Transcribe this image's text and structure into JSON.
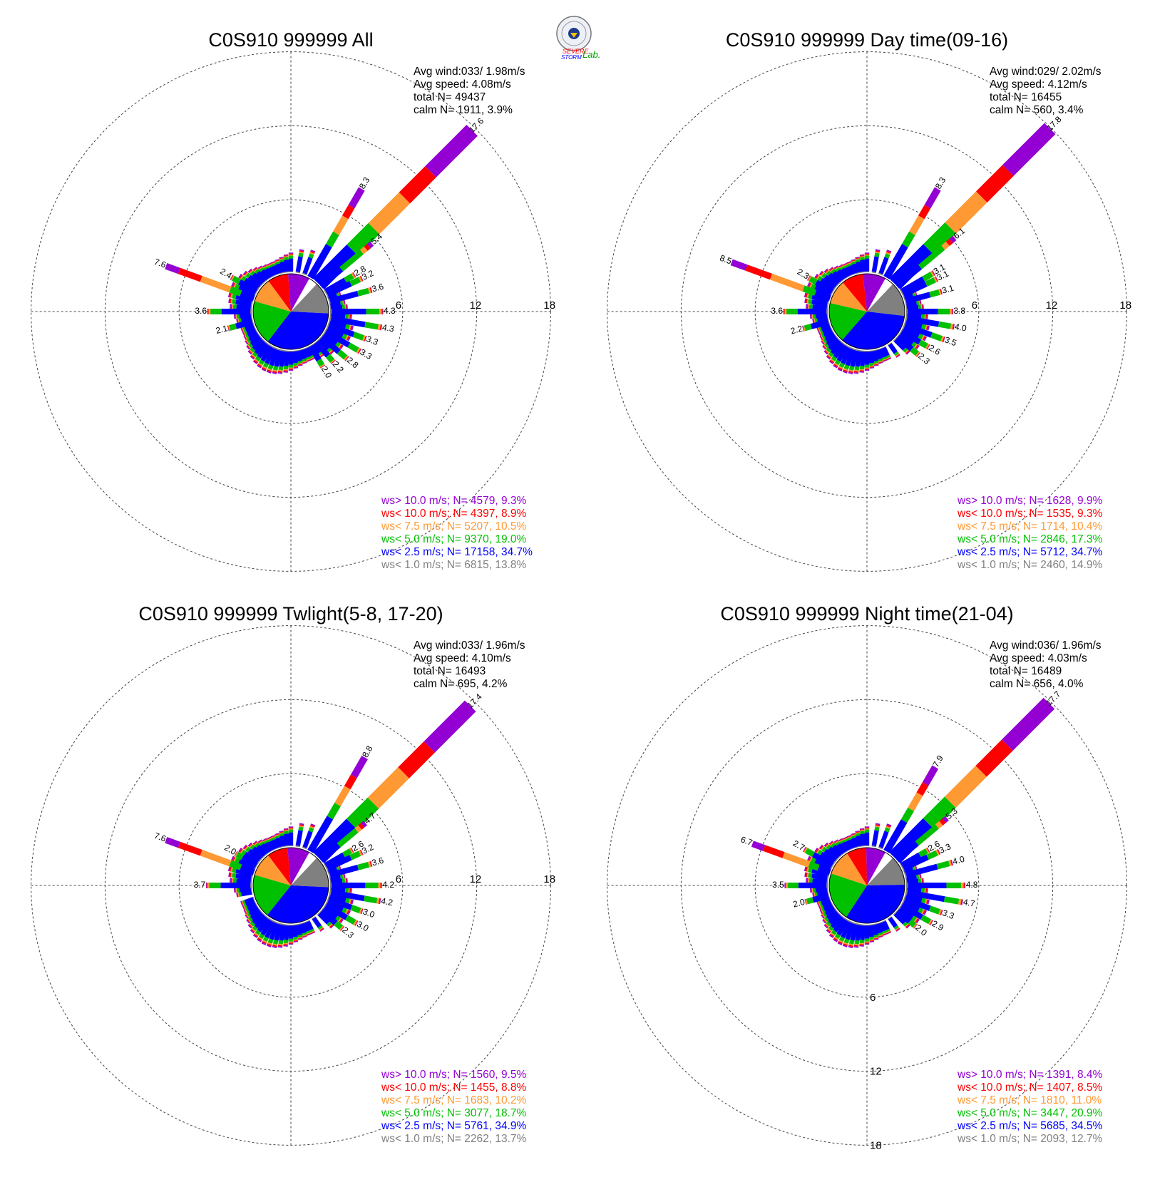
{
  "colors": {
    "gt10": "#9400d3",
    "lt10": "#ff0000",
    "lt7_5": "#ff9933",
    "lt5": "#00c000",
    "lt2_5": "#0000ff",
    "lt1": "#808080"
  },
  "logo": {
    "text_top": "SEVERE",
    "text_bottom": "STORM",
    "text_lab": "Lab."
  },
  "chart_data": [
    {
      "type": "windrose",
      "title": "C0S910 999999 All",
      "stats": [
        "Avg wind:033/ 1.98m/s",
        "Avg speed: 4.08m/s",
        "total N=      49437",
        "calm N=   1911,   3.9%"
      ],
      "rings": [
        "6",
        "12",
        "18"
      ],
      "ring_label_side": "east",
      "legend": [
        {
          "key": "gt10",
          "text": "ws> 10.0 m/s; N=  4579,  9.3%"
        },
        {
          "key": "lt10",
          "text": "ws< 10.0 m/s; N=  4397,  8.9%"
        },
        {
          "key": "lt7_5",
          "text": "ws<  7.5 m/s; N=  5207, 10.5%"
        },
        {
          "key": "lt5",
          "text": "ws<  5.0 m/s; N=  9370, 19.0%"
        },
        {
          "key": "lt2_5",
          "text": "ws<  2.5 m/s; N= 17158, 34.7%"
        },
        {
          "key": "lt1",
          "text": "ws<  1.0 m/s; N=  6815, 13.8%"
        }
      ],
      "pie": [
        13.8,
        34.7,
        19.0,
        10.5,
        8.9,
        9.3
      ],
      "spokes": [
        {
          "dir": 45,
          "total": 17.6,
          "label": "17.6"
        },
        {
          "dir": 30,
          "total": 8.3,
          "label": "8.3"
        },
        {
          "dir": 50,
          "total": 5.4,
          "label": "5.4"
        },
        {
          "dir": 60,
          "total": 2.8,
          "label": "2.8"
        },
        {
          "dir": 65,
          "total": 3.2,
          "label": "3.2"
        },
        {
          "dir": 75,
          "total": 3.6,
          "label": "3.6"
        },
        {
          "dir": 90,
          "total": 4.3,
          "label": "4.3"
        },
        {
          "dir": 100,
          "total": 4.3,
          "label": "4.3"
        },
        {
          "dir": 110,
          "total": 3.3,
          "label": "3.3"
        },
        {
          "dir": 120,
          "total": 3.3,
          "label": "3.3"
        },
        {
          "dir": 130,
          "total": 2.8,
          "label": "2.8"
        },
        {
          "dir": 140,
          "total": 2.2,
          "label": "2.2"
        },
        {
          "dir": 150,
          "total": 2.0,
          "label": "2.0"
        },
        {
          "dir": 290,
          "total": 7.6,
          "label": "7.6"
        },
        {
          "dir": 300,
          "total": 2.4,
          "label": "2.4"
        },
        {
          "dir": 270,
          "total": 3.6,
          "label": "3.6"
        },
        {
          "dir": 255,
          "total": 2.1,
          "label": "2.1"
        }
      ]
    },
    {
      "type": "windrose",
      "title": "C0S910 999999 Day time(09-16)",
      "stats": [
        "Avg wind:029/ 2.02m/s",
        "Avg speed: 4.12m/s",
        "total N=      16455",
        "calm N=    560,   3.4%"
      ],
      "rings": [
        "6",
        "12",
        "18"
      ],
      "ring_label_side": "east",
      "legend": [
        {
          "key": "gt10",
          "text": "ws> 10.0 m/s; N=  1628,  9.9%"
        },
        {
          "key": "lt10",
          "text": "ws< 10.0 m/s; N=  1535,  9.3%"
        },
        {
          "key": "lt7_5",
          "text": "ws<  7.5 m/s; N=  1714, 10.4%"
        },
        {
          "key": "lt5",
          "text": "ws<  5.0 m/s; N=  2846, 17.3%"
        },
        {
          "key": "lt2_5",
          "text": "ws<  2.5 m/s; N=  5712, 34.7%"
        },
        {
          "key": "lt1",
          "text": "ws<  1.0 m/s; N=  2460, 14.9%"
        }
      ],
      "pie": [
        14.9,
        34.7,
        17.3,
        10.4,
        9.3,
        9.9
      ],
      "spokes": [
        {
          "dir": 45,
          "total": 17.8,
          "label": "17.8"
        },
        {
          "dir": 30,
          "total": 8.3,
          "label": "8.3"
        },
        {
          "dir": 50,
          "total": 6.1,
          "label": "6.1"
        },
        {
          "dir": 60,
          "total": 3.1,
          "label": "3.1"
        },
        {
          "dir": 65,
          "total": 3.1,
          "label": "3.1"
        },
        {
          "dir": 75,
          "total": 3.1,
          "label": "3.1"
        },
        {
          "dir": 90,
          "total": 3.8,
          "label": "3.8"
        },
        {
          "dir": 100,
          "total": 4.0,
          "label": "4.0"
        },
        {
          "dir": 110,
          "total": 3.5,
          "label": "3.5"
        },
        {
          "dir": 120,
          "total": 2.6,
          "label": "2.6"
        },
        {
          "dir": 130,
          "total": 2.3,
          "label": "2.3"
        },
        {
          "dir": 290,
          "total": 8.5,
          "label": "8.5"
        },
        {
          "dir": 300,
          "total": 2.3,
          "label": "2.3"
        },
        {
          "dir": 270,
          "total": 3.6,
          "label": "3.6"
        },
        {
          "dir": 255,
          "total": 2.2,
          "label": "2.2"
        }
      ]
    },
    {
      "type": "windrose",
      "title": "C0S910 999999 Twlight(5-8, 17-20)",
      "stats": [
        "Avg wind:033/ 1.96m/s",
        "Avg speed: 4.10m/s",
        "total N=      16493",
        "calm N=    695,   4.2%"
      ],
      "rings": [
        "6",
        "12",
        "18"
      ],
      "ring_label_side": "east",
      "legend": [
        {
          "key": "gt10",
          "text": "ws> 10.0 m/s; N=  1560,  9.5%"
        },
        {
          "key": "lt10",
          "text": "ws< 10.0 m/s; N=  1455,  8.8%"
        },
        {
          "key": "lt7_5",
          "text": "ws<  7.5 m/s; N=  1683, 10.2%"
        },
        {
          "key": "lt5",
          "text": "ws<  5.0 m/s; N=  3077, 18.7%"
        },
        {
          "key": "lt2_5",
          "text": "ws<  2.5 m/s; N=  5761, 34.9%"
        },
        {
          "key": "lt1",
          "text": "ws<  1.0 m/s; N=  2262, 13.7%"
        }
      ],
      "pie": [
        13.7,
        34.9,
        18.7,
        10.2,
        8.8,
        9.5
      ],
      "spokes": [
        {
          "dir": 45,
          "total": 17.4,
          "label": "17.4"
        },
        {
          "dir": 30,
          "total": 8.8,
          "label": "8.8"
        },
        {
          "dir": 50,
          "total": 4.7,
          "label": "4.7"
        },
        {
          "dir": 60,
          "total": 2.6,
          "label": "2.6"
        },
        {
          "dir": 65,
          "total": 3.2,
          "label": "3.2"
        },
        {
          "dir": 75,
          "total": 3.6,
          "label": "3.6"
        },
        {
          "dir": 90,
          "total": 4.2,
          "label": "4.2"
        },
        {
          "dir": 100,
          "total": 4.2,
          "label": "4.2"
        },
        {
          "dir": 110,
          "total": 3.0,
          "label": "3.0"
        },
        {
          "dir": 120,
          "total": 3.0,
          "label": "3.0"
        },
        {
          "dir": 130,
          "total": 2.3,
          "label": "2.3"
        },
        {
          "dir": 290,
          "total": 7.6,
          "label": "7.6"
        },
        {
          "dir": 300,
          "total": 2.0,
          "label": "2.0"
        },
        {
          "dir": 270,
          "total": 3.7,
          "label": "3.7"
        }
      ]
    },
    {
      "type": "windrose",
      "title": "C0S910 999999 Night time(21-04)",
      "stats": [
        "Avg wind:036/ 1.96m/s",
        "Avg speed: 4.03m/s",
        "total N=      16489",
        "calm N=    656,   4.0%"
      ],
      "rings": [
        "6",
        "12",
        "18"
      ],
      "ring_label_side": "south",
      "legend": [
        {
          "key": "gt10",
          "text": "ws> 10.0 m/s; N=  1391,  8.4%"
        },
        {
          "key": "lt10",
          "text": "ws< 10.0 m/s; N=  1407,  8.5%"
        },
        {
          "key": "lt7_5",
          "text": "ws<  7.5 m/s; N=  1810, 11.0%"
        },
        {
          "key": "lt5",
          "text": "ws<  5.0 m/s; N=  3447, 20.9%"
        },
        {
          "key": "lt2_5",
          "text": "ws<  2.5 m/s; N=  5685, 34.5%"
        },
        {
          "key": "lt1",
          "text": "ws<  1.0 m/s; N=  2093, 12.7%"
        }
      ],
      "pie": [
        12.7,
        34.5,
        20.9,
        11.0,
        8.5,
        8.4
      ],
      "spokes": [
        {
          "dir": 45,
          "total": 17.7,
          "label": "17.7"
        },
        {
          "dir": 30,
          "total": 7.9,
          "label": "7.9"
        },
        {
          "dir": 50,
          "total": 5.3,
          "label": "5.3"
        },
        {
          "dir": 60,
          "total": 2.6,
          "label": "2.6"
        },
        {
          "dir": 65,
          "total": 3.3,
          "label": "3.3"
        },
        {
          "dir": 75,
          "total": 4.0,
          "label": "4.0"
        },
        {
          "dir": 90,
          "total": 4.8,
          "label": "4.8"
        },
        {
          "dir": 100,
          "total": 4.7,
          "label": "4.7"
        },
        {
          "dir": 110,
          "total": 3.3,
          "label": "3.3"
        },
        {
          "dir": 120,
          "total": 2.9,
          "label": "2.9"
        },
        {
          "dir": 130,
          "total": 2.0,
          "label": "2.0"
        },
        {
          "dir": 290,
          "total": 6.7,
          "label": "6.7"
        },
        {
          "dir": 300,
          "total": 2.7,
          "label": "2.7"
        },
        {
          "dir": 270,
          "total": 3.5,
          "label": "3.5"
        },
        {
          "dir": 255,
          "total": 2.0,
          "label": "2.0"
        }
      ]
    }
  ]
}
